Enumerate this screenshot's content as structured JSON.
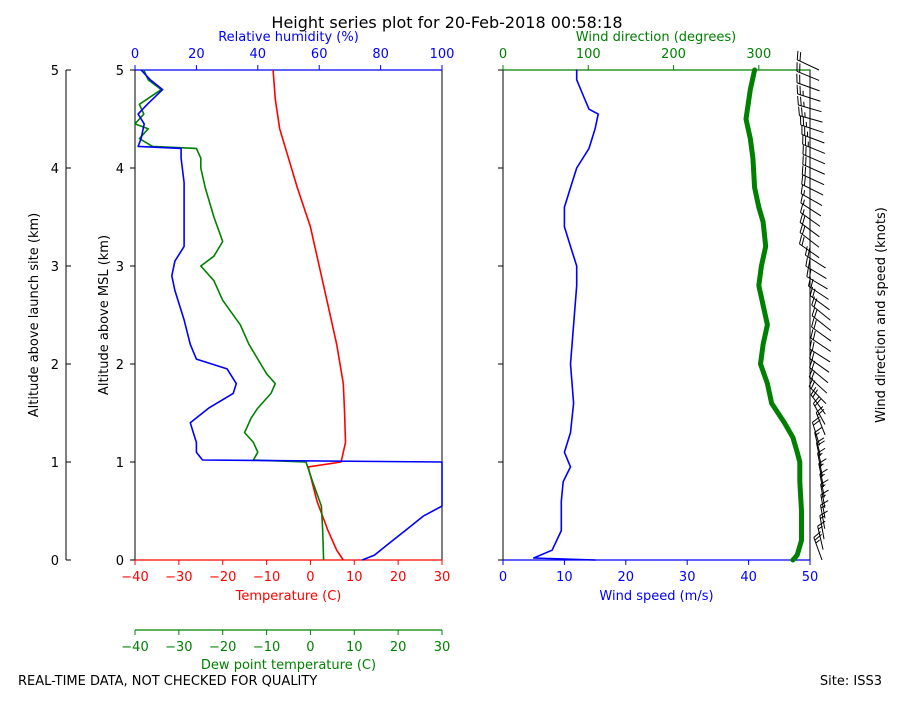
{
  "title": "Height series plot for 20-Feb-2018 00:58:18",
  "footer": {
    "left": "REAL-TIME DATA, NOT CHECKED FOR QUALITY",
    "right": "Site: ISS3"
  },
  "colors": {
    "temperature": "#ff0000",
    "dewpoint": "#008000",
    "humidity": "#0000ff",
    "wind_speed": "#0000ff",
    "wind_direction": "#008000",
    "barbs": "#000000"
  },
  "chart_data": [
    {
      "type": "line",
      "panel": "thermodynamics",
      "ylabel_outer": "Altitude above launch site (km)",
      "ylabel_inner": "Altitude above MSL (km)",
      "ylim": [
        0,
        5
      ],
      "yticks": [
        "0",
        "1",
        "2",
        "3",
        "4",
        "5"
      ],
      "axes": {
        "temperature": {
          "label": "Temperature (C)",
          "lim": [
            -40,
            30
          ],
          "ticks": [
            "−40",
            "−30",
            "−20",
            "−10",
            "0",
            "10",
            "20",
            "30"
          ]
        },
        "dewpoint": {
          "label": "Dew point temperature (C)",
          "lim": [
            -40,
            30
          ],
          "ticks": [
            "−40",
            "−30",
            "−20",
            "−10",
            "0",
            "10",
            "20",
            "30"
          ]
        },
        "humidity": {
          "label": "Relative humidity (%)",
          "lim": [
            0,
            100
          ],
          "ticks": [
            "0",
            "20",
            "40",
            "60",
            "80",
            "100"
          ]
        }
      },
      "series": [
        {
          "key": "temperature",
          "points": [
            [
              7.5,
              0
            ],
            [
              6,
              0.1
            ],
            [
              4,
              0.3
            ],
            [
              1.5,
              0.6
            ],
            [
              -0.5,
              0.95
            ],
            [
              7,
              1.0
            ],
            [
              7.5,
              1.1
            ],
            [
              8,
              1.2
            ],
            [
              7.8,
              1.5
            ],
            [
              7.5,
              1.8
            ],
            [
              6,
              2.2
            ],
            [
              4,
              2.6
            ],
            [
              2,
              3.0
            ],
            [
              0,
              3.4
            ],
            [
              -3,
              3.8
            ],
            [
              -5,
              4.1
            ],
            [
              -7,
              4.4
            ],
            [
              -8,
              4.7
            ],
            [
              -8.5,
              5.0
            ]
          ]
        },
        {
          "key": "dewpoint",
          "points": [
            [
              3,
              0
            ],
            [
              2.8,
              0.3
            ],
            [
              2.5,
              0.55
            ],
            [
              0.5,
              0.8
            ],
            [
              -1,
              1.0
            ],
            [
              -13,
              1.02
            ],
            [
              -12,
              1.1
            ],
            [
              -13,
              1.2
            ],
            [
              -15,
              1.3
            ],
            [
              -13.5,
              1.45
            ],
            [
              -12,
              1.55
            ],
            [
              -9,
              1.7
            ],
            [
              -8,
              1.8
            ],
            [
              -10,
              1.9
            ],
            [
              -12,
              2.05
            ],
            [
              -14,
              2.2
            ],
            [
              -16,
              2.4
            ],
            [
              -20,
              2.65
            ],
            [
              -22,
              2.85
            ],
            [
              -25,
              3.0
            ],
            [
              -22,
              3.1
            ],
            [
              -20,
              3.25
            ],
            [
              -22,
              3.5
            ],
            [
              -24,
              3.8
            ],
            [
              -25,
              4.0
            ],
            [
              -25,
              4.1
            ],
            [
              -26,
              4.2
            ],
            [
              -36,
              4.22
            ],
            [
              -39,
              4.3
            ],
            [
              -37,
              4.4
            ],
            [
              -40,
              4.45
            ],
            [
              -38,
              4.55
            ],
            [
              -39,
              4.65
            ],
            [
              -34,
              4.8
            ],
            [
              -37,
              4.9
            ],
            [
              -38,
              5.0
            ]
          ]
        },
        {
          "key": "humidity",
          "points": [
            [
              74,
              0
            ],
            [
              78,
              0.05
            ],
            [
              82,
              0.15
            ],
            [
              88,
              0.3
            ],
            [
              94,
              0.45
            ],
            [
              100,
              0.55
            ],
            [
              100,
              1.0
            ],
            [
              22,
              1.02
            ],
            [
              20,
              1.1
            ],
            [
              20,
              1.2
            ],
            [
              19,
              1.3
            ],
            [
              18,
              1.4
            ],
            [
              24,
              1.55
            ],
            [
              32,
              1.7
            ],
            [
              33,
              1.8
            ],
            [
              30,
              1.95
            ],
            [
              20,
              2.05
            ],
            [
              18,
              2.2
            ],
            [
              16,
              2.45
            ],
            [
              13,
              2.75
            ],
            [
              12,
              2.9
            ],
            [
              13,
              3.05
            ],
            [
              16,
              3.2
            ],
            [
              16,
              3.5
            ],
            [
              16,
              3.85
            ],
            [
              15,
              4.1
            ],
            [
              15,
              4.2
            ],
            [
              1,
              4.22
            ],
            [
              2,
              4.3
            ],
            [
              3,
              4.45
            ],
            [
              1,
              4.55
            ],
            [
              4,
              4.65
            ],
            [
              9,
              4.8
            ],
            [
              5,
              4.9
            ],
            [
              2,
              5.0
            ]
          ]
        }
      ]
    },
    {
      "type": "line",
      "panel": "wind",
      "ylim": [
        0,
        5
      ],
      "axes": {
        "wind_speed": {
          "label": "Wind speed (m/s)",
          "lim": [
            0,
            50
          ],
          "ticks": [
            "0",
            "10",
            "20",
            "30",
            "40",
            "50"
          ]
        },
        "wind_direction": {
          "label": "Wind direction (degrees)",
          "lim": [
            0,
            360
          ],
          "ticks": [
            "0",
            "100",
            "200",
            "300"
          ]
        }
      },
      "barb_label": "Wind direction and speed (knots)",
      "series": [
        {
          "key": "wind_speed",
          "points": [
            [
              15,
              0.0
            ],
            [
              5,
              0.02
            ],
            [
              8,
              0.1
            ],
            [
              9.5,
              0.3
            ],
            [
              9.5,
              0.6
            ],
            [
              9.8,
              0.8
            ],
            [
              11,
              0.95
            ],
            [
              10,
              1.1
            ],
            [
              11,
              1.3
            ],
            [
              11.5,
              1.6
            ],
            [
              11,
              2.0
            ],
            [
              11.5,
              2.4
            ],
            [
              12,
              2.8
            ],
            [
              12,
              3.0
            ],
            [
              11,
              3.2
            ],
            [
              10,
              3.4
            ],
            [
              10,
              3.6
            ],
            [
              11,
              3.8
            ],
            [
              12,
              4.0
            ],
            [
              14,
              4.2
            ],
            [
              15,
              4.4
            ],
            [
              15.5,
              4.55
            ],
            [
              14,
              4.6
            ],
            [
              13,
              4.75
            ],
            [
              12,
              4.9
            ],
            [
              12,
              5.0
            ]
          ]
        },
        {
          "key": "wind_direction",
          "points": [
            [
              340,
              0.0
            ],
            [
              345,
              0.05
            ],
            [
              350,
              0.2
            ],
            [
              350,
              0.5
            ],
            [
              348,
              0.8
            ],
            [
              348,
              1.0
            ],
            [
              345,
              1.1
            ],
            [
              340,
              1.25
            ],
            [
              330,
              1.4
            ],
            [
              315,
              1.6
            ],
            [
              310,
              1.8
            ],
            [
              302,
              2.0
            ],
            [
              305,
              2.2
            ],
            [
              310,
              2.4
            ],
            [
              305,
              2.6
            ],
            [
              300,
              2.8
            ],
            [
              303,
              3.0
            ],
            [
              308,
              3.2
            ],
            [
              305,
              3.45
            ],
            [
              300,
              3.6
            ],
            [
              295,
              3.8
            ],
            [
              293,
              4.1
            ],
            [
              290,
              4.3
            ],
            [
              285,
              4.5
            ],
            [
              290,
              4.8
            ],
            [
              295,
              5.0
            ]
          ]
        }
      ]
    }
  ]
}
